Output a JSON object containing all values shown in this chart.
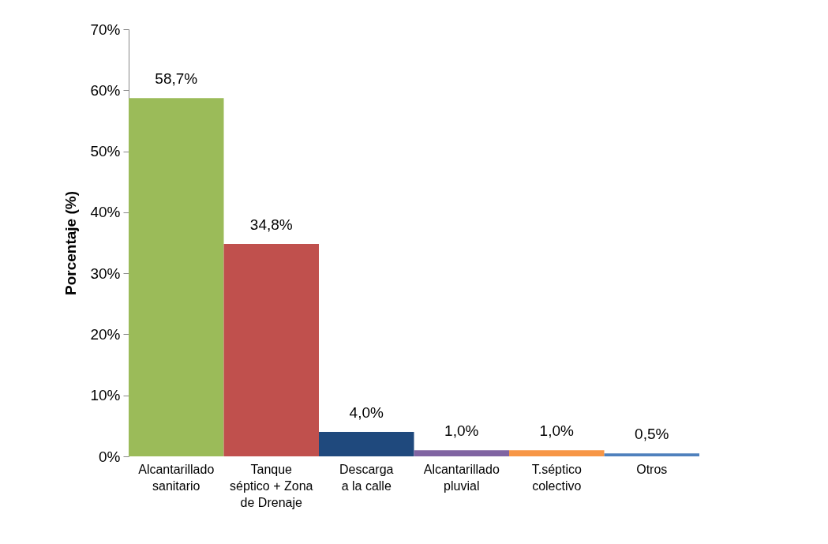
{
  "chart_data": {
    "type": "bar",
    "ylabel": "Porcentaje (%)",
    "categories": [
      "Alcantarillado\nsanitario",
      "Tanque\nséptico + Zona\nde Drenaje",
      "Descarga\na la calle",
      "Alcantarillado\npluvial",
      "T.séptico\ncolectivo",
      "Otros"
    ],
    "values": [
      58.7,
      34.8,
      4.0,
      1.0,
      1.0,
      0.5
    ],
    "value_labels": [
      "58,7%",
      "34,8%",
      "4,0%",
      "1,0%",
      "1,0%",
      "0,5%"
    ],
    "colors": [
      "#9bbb59",
      "#c0504d",
      "#1f497d",
      "#8064a2",
      "#f79646",
      "#4f81bd"
    ],
    "ylim": [
      0,
      70
    ],
    "yticks": [
      {
        "value": 0,
        "label": "0%"
      },
      {
        "value": 10,
        "label": "10%"
      },
      {
        "value": 20,
        "label": "20%"
      },
      {
        "value": 30,
        "label": "30%"
      },
      {
        "value": 40,
        "label": "40%"
      },
      {
        "value": 50,
        "label": "50%"
      },
      {
        "value": 60,
        "label": "60%"
      },
      {
        "value": 70,
        "label": "70%"
      }
    ],
    "grid": false
  }
}
